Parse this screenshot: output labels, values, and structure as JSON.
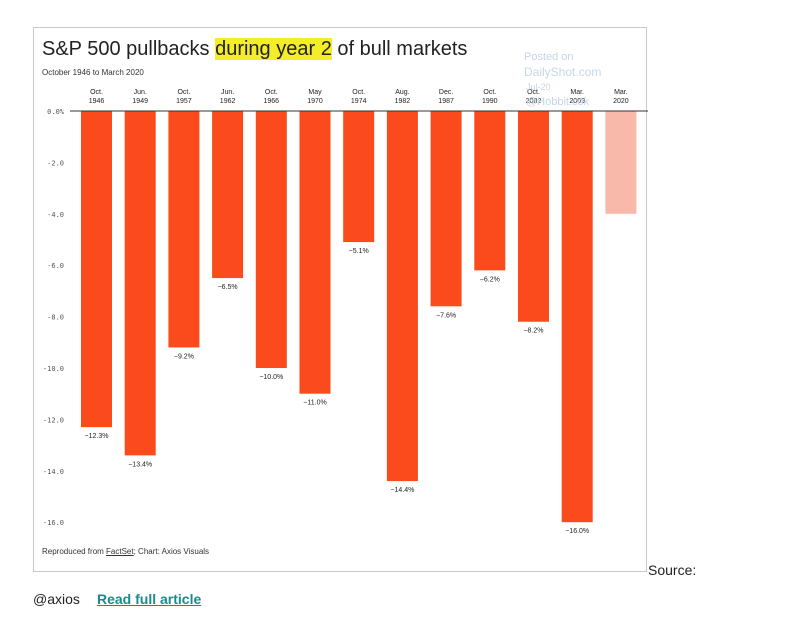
{
  "chart_data": {
    "type": "bar",
    "title_parts": [
      "S&P 500 pullbacks ",
      "during year 2",
      " of bull markets"
    ],
    "subtitle": "October 1946 to March 2020",
    "categories": [
      [
        "Oct.",
        "1946"
      ],
      [
        "Jun.",
        "1949"
      ],
      [
        "Oct.",
        "1957"
      ],
      [
        "Jun.",
        "1962"
      ],
      [
        "Oct.",
        "1966"
      ],
      [
        "May",
        "1970"
      ],
      [
        "Oct.",
        "1974"
      ],
      [
        "Aug.",
        "1982"
      ],
      [
        "Dec.",
        "1987"
      ],
      [
        "Oct.",
        "1990"
      ],
      [
        "Oct.",
        "2002"
      ],
      [
        "Mar.",
        "2009"
      ],
      [
        "Mar.",
        "2020"
      ]
    ],
    "values": [
      -12.3,
      -13.4,
      -9.2,
      -6.5,
      -10.0,
      -11.0,
      -5.1,
      -14.4,
      -7.6,
      -6.2,
      -8.2,
      -16.0,
      -4.0
    ],
    "data_labels": [
      "−12.3%",
      "−13.4%",
      "−9.2%",
      "−6.5%",
      "−10.0%",
      "−11.0%",
      "−5.1%",
      "−14.4%",
      "−7.6%",
      "−6.2%",
      "−8.2%",
      "−16.0%",
      ""
    ],
    "y_ticks": [
      0,
      -2,
      -4,
      -6,
      -8,
      -10,
      -12,
      -14,
      -16
    ],
    "y_tick_labels": [
      "0.0%",
      "-2.0",
      "-4.0",
      "-6.0",
      "-8.0",
      "-10.0",
      "-12.0",
      "-14.0",
      "-16.0"
    ],
    "ylim": [
      -16.2,
      0
    ],
    "xlabel": "",
    "ylabel": "",
    "grid": false,
    "colors": {
      "bar": "#fb4a1c",
      "bar_highlight": "#f8b9ab"
    },
    "highlight_index": 12
  },
  "watermark": {
    "line1": "Posted on",
    "line2": "DailyShot.com",
    "line3": "Jul-20",
    "line4": "@Hobbit.cok"
  },
  "credit": {
    "prefix": "Reproduced from ",
    "source_name": "FactSet",
    "suffix": "; Chart: Axios Visuals"
  },
  "footer": {
    "source_label": "Source:",
    "handle": "@axios",
    "link_text": "Read full article"
  }
}
